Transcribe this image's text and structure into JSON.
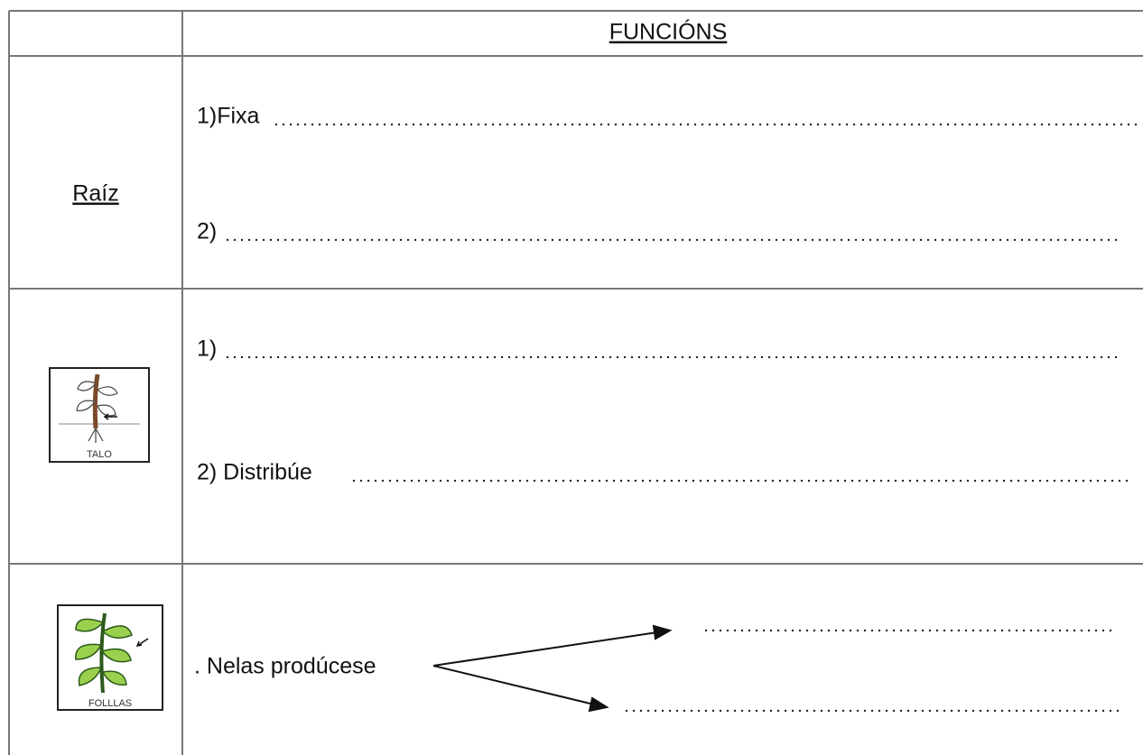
{
  "header": {
    "title": "FUNCIÓNS"
  },
  "rows": [
    {
      "label": "Raíz",
      "lines": [
        "1)Fixa",
        "2)"
      ]
    },
    {
      "icon_label": "TALO",
      "lines": [
        "1)",
        "2) Distribúe"
      ]
    },
    {
      "icon_label": "FOLLLAS",
      "lines": [
        ". Nelas prodúcese"
      ]
    }
  ]
}
